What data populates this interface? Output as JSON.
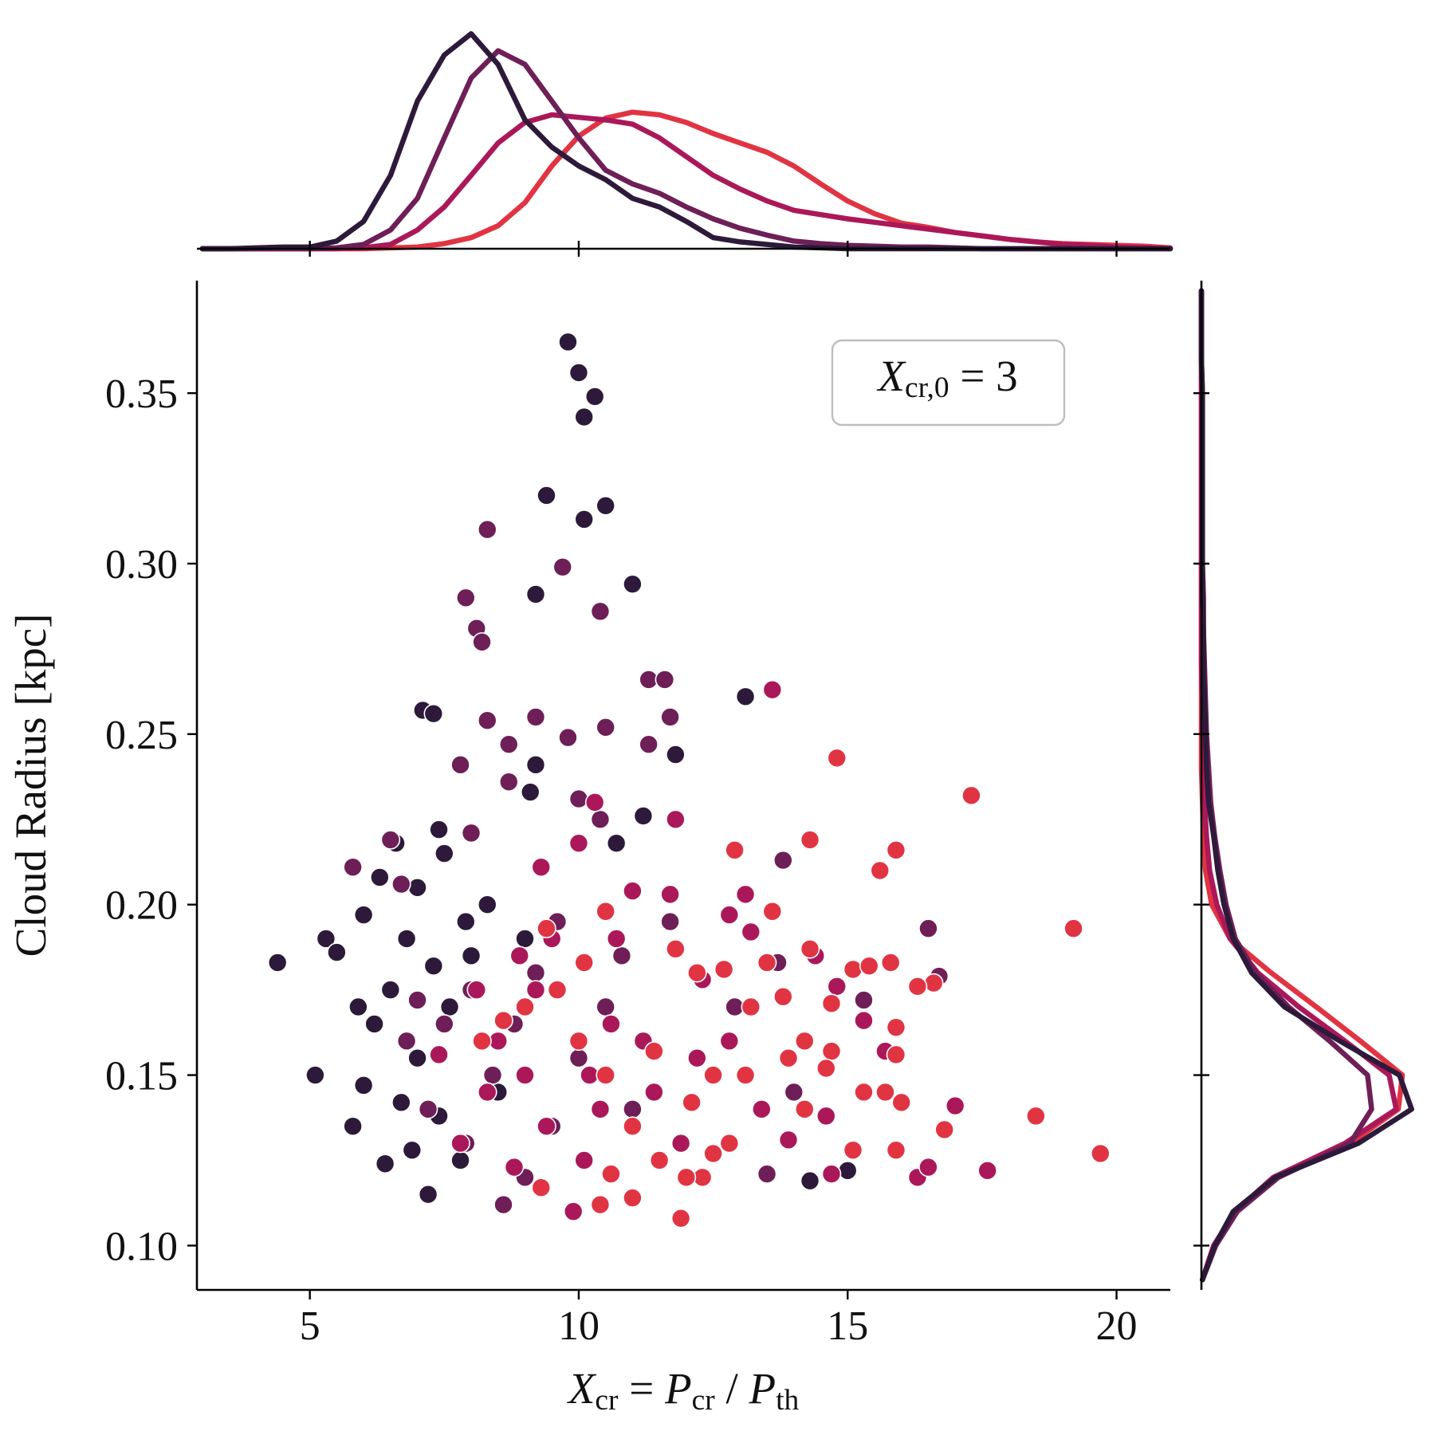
{
  "chart_data": [
    {
      "type": "scatter",
      "ylabel": "Cloud Radius [kpc]",
      "xlabel": [
        {
          "text": "X",
          "role": "var"
        },
        {
          "text": "cr",
          "role": "sub"
        },
        {
          "text": " = ",
          "role": "op"
        },
        {
          "text": "P",
          "role": "var"
        },
        {
          "text": "cr",
          "role": "sub"
        },
        {
          "text": " / ",
          "role": "op"
        },
        {
          "text": "P",
          "role": "var"
        },
        {
          "text": "th",
          "role": "sub"
        }
      ],
      "annotation": [
        {
          "text": "X",
          "role": "var"
        },
        {
          "text": "cr,0",
          "role": "sub"
        },
        {
          "text": " = 3",
          "role": "op"
        }
      ],
      "xlim": [
        2.9,
        21.0
      ],
      "ylim": [
        0.087,
        0.383
      ],
      "xticks": [
        5,
        10,
        15,
        20
      ],
      "yticks": [
        {
          "value": 0.1,
          "label": "0.10"
        },
        0.15,
        {
          "value": 0.2,
          "label": "0.20"
        },
        0.25,
        {
          "value": 0.3,
          "label": "0.30"
        },
        0.35
      ],
      "series": [
        {
          "color": "#2d1a3a",
          "x": [
            9.8,
            10.0,
            10.3,
            10.1,
            9.4,
            10.5,
            10.1,
            11.0,
            9.2,
            7.1,
            7.3,
            13.1,
            9.2,
            11.8,
            9.1,
            11.2,
            10.7,
            4.4,
            5.1,
            5.3,
            5.5,
            6.0,
            6.6,
            7.4,
            6.3,
            7.0,
            7.5,
            6.2,
            6.5,
            5.8,
            6.0,
            6.4,
            6.7,
            7.2,
            6.9,
            7.4,
            7.0,
            7.6,
            8.0,
            8.2,
            7.8,
            8.5,
            8.3,
            7.9,
            9.0,
            14.3,
            15.0,
            6.8,
            7.3,
            5.9
          ],
          "values": [
            0.365,
            0.356,
            0.349,
            0.343,
            0.32,
            0.317,
            0.313,
            0.294,
            0.291,
            0.257,
            0.256,
            0.261,
            0.241,
            0.244,
            0.233,
            0.226,
            0.218,
            0.183,
            0.15,
            0.19,
            0.186,
            0.197,
            0.218,
            0.222,
            0.208,
            0.205,
            0.215,
            0.165,
            0.175,
            0.135,
            0.147,
            0.124,
            0.142,
            0.115,
            0.128,
            0.138,
            0.155,
            0.17,
            0.185,
            0.16,
            0.125,
            0.145,
            0.2,
            0.195,
            0.19,
            0.119,
            0.122,
            0.19,
            0.182,
            0.17
          ]
        },
        {
          "color": "#6e1f57",
          "x": [
            8.3,
            9.7,
            7.9,
            8.1,
            8.2,
            10.4,
            11.3,
            11.6,
            8.3,
            9.2,
            10.5,
            8.7,
            9.8,
            11.7,
            7.8,
            11.3,
            8.7,
            10.0,
            10.4,
            8.0,
            6.5,
            5.8,
            6.7,
            13.8,
            16.5,
            15.3,
            16.7,
            13.7,
            11.7,
            7.0,
            7.5,
            8.0,
            8.8,
            9.2,
            8.4,
            7.2,
            6.8,
            7.9,
            9.0,
            8.6,
            9.5,
            10.0,
            10.5,
            11.0,
            12.5,
            13.5,
            12.9,
            14.0,
            10.8,
            9.6
          ],
          "values": [
            0.31,
            0.299,
            0.29,
            0.281,
            0.277,
            0.286,
            0.266,
            0.266,
            0.254,
            0.255,
            0.252,
            0.247,
            0.249,
            0.255,
            0.241,
            0.247,
            0.236,
            0.231,
            0.225,
            0.221,
            0.219,
            0.211,
            0.206,
            0.213,
            0.193,
            0.172,
            0.179,
            0.183,
            0.195,
            0.172,
            0.165,
            0.175,
            0.165,
            0.18,
            0.15,
            0.14,
            0.16,
            0.13,
            0.12,
            0.112,
            0.135,
            0.155,
            0.17,
            0.14,
            0.127,
            0.121,
            0.17,
            0.145,
            0.185,
            0.195
          ]
        },
        {
          "color": "#ab185a",
          "x": [
            13.6,
            11.8,
            10.0,
            10.3,
            9.3,
            11.0,
            11.7,
            13.1,
            12.8,
            13.2,
            9.5,
            10.7,
            8.9,
            9.2,
            8.5,
            7.4,
            8.3,
            7.8,
            8.8,
            9.4,
            10.2,
            10.6,
            11.4,
            11.9,
            12.2,
            12.8,
            13.4,
            13.9,
            14.6,
            14.8,
            15.3,
            15.7,
            16.3,
            16.5,
            17.0,
            17.6,
            14.7,
            14.4,
            12.3,
            11.2,
            9.9,
            10.4,
            9.0,
            8.1,
            10.1
          ],
          "values": [
            0.263,
            0.225,
            0.218,
            0.23,
            0.211,
            0.204,
            0.203,
            0.203,
            0.197,
            0.192,
            0.19,
            0.19,
            0.185,
            0.175,
            0.16,
            0.156,
            0.145,
            0.13,
            0.123,
            0.135,
            0.15,
            0.165,
            0.145,
            0.13,
            0.155,
            0.16,
            0.14,
            0.131,
            0.138,
            0.176,
            0.166,
            0.157,
            0.12,
            0.123,
            0.141,
            0.122,
            0.121,
            0.185,
            0.178,
            0.16,
            0.11,
            0.14,
            0.15,
            0.175,
            0.125
          ]
        },
        {
          "color": "#e13443",
          "x": [
            14.8,
            17.3,
            14.3,
            15.9,
            15.6,
            12.9,
            13.6,
            10.5,
            9.4,
            10.1,
            11.8,
            12.2,
            12.7,
            13.5,
            14.3,
            15.1,
            15.4,
            15.8,
            16.6,
            16.3,
            13.2,
            13.8,
            14.7,
            15.9,
            15.9,
            14.7,
            14.2,
            13.9,
            14.6,
            13.1,
            12.5,
            15.3,
            15.7,
            16.0,
            16.8,
            18.5,
            19.7,
            19.2,
            15.1,
            15.9,
            12.3,
            11.9,
            11.0,
            10.4,
            9.3,
            10.6,
            11.5,
            12.0,
            12.5,
            10.0,
            10.5,
            11.0,
            12.1,
            12.8,
            8.2,
            8.6,
            9.0,
            9.6,
            11.4,
            14.2
          ],
          "values": [
            0.243,
            0.232,
            0.219,
            0.216,
            0.21,
            0.216,
            0.198,
            0.198,
            0.193,
            0.183,
            0.187,
            0.18,
            0.181,
            0.183,
            0.187,
            0.181,
            0.182,
            0.183,
            0.177,
            0.176,
            0.17,
            0.173,
            0.171,
            0.164,
            0.156,
            0.157,
            0.16,
            0.155,
            0.152,
            0.15,
            0.15,
            0.145,
            0.145,
            0.142,
            0.134,
            0.138,
            0.127,
            0.193,
            0.128,
            0.128,
            0.12,
            0.108,
            0.114,
            0.112,
            0.117,
            0.121,
            0.125,
            0.12,
            0.127,
            0.16,
            0.15,
            0.135,
            0.142,
            0.13,
            0.16,
            0.166,
            0.17,
            0.175,
            0.157,
            0.14
          ]
        }
      ]
    },
    {
      "type": "line",
      "orientation": "vertical",
      "xlim": [
        2.9,
        21.0
      ],
      "ylim": [
        0,
        0.27
      ],
      "xticks": [
        5,
        10,
        15,
        20
      ],
      "x": [
        3,
        3.5,
        4,
        4.5,
        5,
        5.5,
        6,
        6.5,
        7,
        7.5,
        8,
        8.5,
        9,
        9.5,
        10,
        10.5,
        11,
        11.5,
        12,
        12.5,
        13,
        13.5,
        14,
        14.5,
        15,
        15.5,
        16,
        16.5,
        17,
        17.5,
        18,
        18.5,
        19,
        19.5,
        20,
        20.5,
        21
      ],
      "series": [
        {
          "color": "#e13443",
          "values": [
            0,
            0,
            0,
            0,
            0,
            0,
            0,
            0.001,
            0.002,
            0.006,
            0.013,
            0.027,
            0.054,
            0.097,
            0.132,
            0.153,
            0.16,
            0.157,
            0.148,
            0.135,
            0.124,
            0.113,
            0.097,
            0.076,
            0.056,
            0.041,
            0.03,
            0.025,
            0.019,
            0.015,
            0.011,
            0.008,
            0.006,
            0.005,
            0.004,
            0.003,
            0.001
          ]
        },
        {
          "color": "#ab185a",
          "values": [
            0,
            0,
            0,
            0,
            0,
            0,
            0.001,
            0.005,
            0.022,
            0.049,
            0.086,
            0.124,
            0.148,
            0.157,
            0.154,
            0.151,
            0.146,
            0.13,
            0.108,
            0.086,
            0.07,
            0.056,
            0.045,
            0.04,
            0.035,
            0.031,
            0.027,
            0.023,
            0.019,
            0.015,
            0.011,
            0.008,
            0.005,
            0.004,
            0.002,
            0.001,
            0
          ]
        },
        {
          "color": "#6e1f57",
          "values": [
            0,
            0,
            0,
            0,
            0,
            0.001,
            0.005,
            0.022,
            0.059,
            0.13,
            0.2,
            0.232,
            0.216,
            0.173,
            0.13,
            0.092,
            0.076,
            0.065,
            0.049,
            0.035,
            0.024,
            0.016,
            0.009,
            0.006,
            0.004,
            0.003,
            0.002,
            0.002,
            0.001,
            0,
            0,
            0,
            0,
            0,
            0,
            0,
            0
          ]
        },
        {
          "color": "#2d1a3a",
          "values": [
            0,
            0,
            0.001,
            0.002,
            0.002,
            0.009,
            0.032,
            0.086,
            0.173,
            0.227,
            0.252,
            0.216,
            0.151,
            0.119,
            0.097,
            0.081,
            0.059,
            0.049,
            0.032,
            0.013,
            0.008,
            0.005,
            0.002,
            0.001,
            0,
            0,
            0,
            0,
            0,
            0,
            0,
            0,
            0,
            0,
            0,
            0,
            0
          ]
        }
      ]
    },
    {
      "type": "line",
      "orientation": "horizontal",
      "ylim": [
        0.087,
        0.383
      ],
      "xlim": [
        0,
        22
      ],
      "yticks": [
        0.1,
        0.15,
        0.2,
        0.25,
        0.3,
        0.35
      ],
      "y": [
        0.09,
        0.1,
        0.11,
        0.12,
        0.13,
        0.14,
        0.15,
        0.16,
        0.17,
        0.18,
        0.19,
        0.2,
        0.21,
        0.22,
        0.23,
        0.24,
        0.25,
        0.26,
        0.27,
        0.28,
        0.29,
        0.3,
        0.31,
        0.32,
        0.33,
        0.34,
        0.35,
        0.36,
        0.37,
        0.38
      ],
      "series": [
        {
          "color": "#e13443",
          "values": [
            0.1,
            1.2,
            3.4,
            7.3,
            14.5,
            19.2,
            19.6,
            15.5,
            11.2,
            6.8,
            2.8,
            1.0,
            0.4,
            0.2,
            0.1,
            0,
            0,
            0,
            0,
            0,
            0,
            0,
            0,
            0,
            0,
            0,
            0,
            0,
            0,
            0
          ]
        },
        {
          "color": "#ab185a",
          "values": [
            0.1,
            1.2,
            3.3,
            7.0,
            14.0,
            19.0,
            18.3,
            14.0,
            9.5,
            5.5,
            2.8,
            1.5,
            0.8,
            0.5,
            0.3,
            0.2,
            0.1,
            0.1,
            0,
            0,
            0,
            0,
            0,
            0,
            0,
            0,
            0,
            0,
            0,
            0
          ]
        },
        {
          "color": "#6e1f57",
          "values": [
            0.1,
            1.4,
            3.5,
            7.5,
            14.5,
            16.6,
            16.2,
            12.5,
            8.5,
            5.3,
            3.3,
            2.4,
            1.8,
            1.3,
            0.9,
            0.7,
            0.5,
            0.4,
            0.3,
            0.2,
            0.2,
            0.1,
            0.1,
            0.1,
            0.1,
            0.1,
            0.1,
            0,
            0,
            0
          ]
        },
        {
          "color": "#2d1a3a",
          "values": [
            0.1,
            1.3,
            3.1,
            7.2,
            15.3,
            20.5,
            19.3,
            13.5,
            8.1,
            4.9,
            3.1,
            2.2,
            1.6,
            1.2,
            0.7,
            0.5,
            0.4,
            0.3,
            0.2,
            0.2,
            0.1,
            0.1,
            0.1,
            0.1,
            0.1,
            0.1,
            0.1,
            0,
            0,
            0
          ]
        }
      ]
    }
  ]
}
